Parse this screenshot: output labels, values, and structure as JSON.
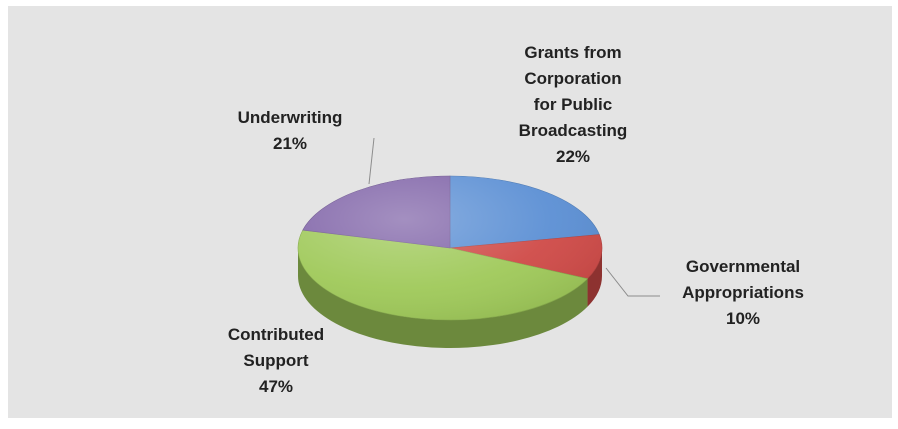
{
  "chart_data": {
    "type": "pie",
    "style": "3d",
    "title": "",
    "slices": [
      {
        "label": "Grants from Corporation for Public Broadcasting",
        "label_lines": [
          "Grants from",
          "Corporation",
          "for Public",
          "Broadcasting"
        ],
        "percent_text": "22%",
        "value": 22,
        "color": "#5b8fd4"
      },
      {
        "label": "Governmental Appropriations",
        "label_lines": [
          "Governmental",
          "Appropriations"
        ],
        "percent_text": "10%",
        "value": 10,
        "color": "#cf4a47"
      },
      {
        "label": "Contributed Support",
        "label_lines": [
          "Contributed",
          "Support"
        ],
        "percent_text": "47%",
        "value": 47,
        "color": "#9fc959"
      },
      {
        "label": "Underwriting",
        "label_lines": [
          "Underwriting"
        ],
        "percent_text": "21%",
        "value": 21,
        "color": "#8064a8"
      }
    ]
  }
}
